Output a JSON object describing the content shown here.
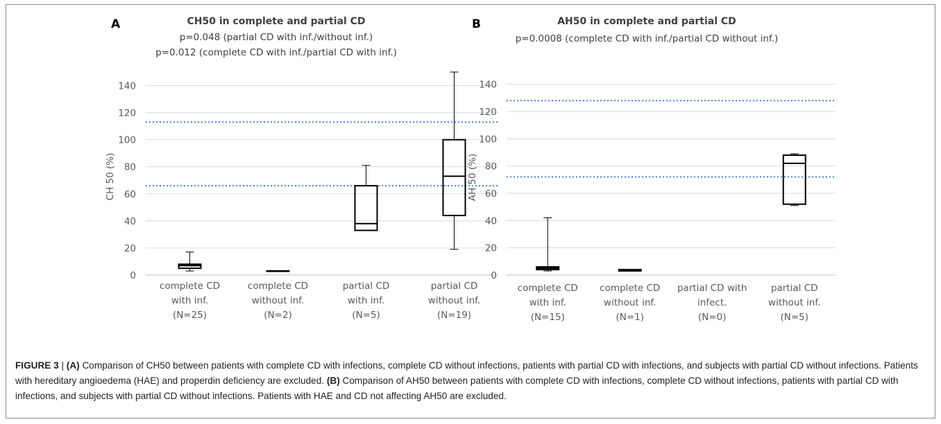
{
  "chart_data": [
    {
      "type": "box",
      "panel_label": "A",
      "title": "CH50 in complete and partial CD",
      "subtitle_lines": [
        "p=0.048 (partial CD with inf./without inf.)",
        "p=0.012 (complete CD with inf./partial CD with inf.)"
      ],
      "ylabel": "CH 50 (%)",
      "xlabel": "",
      "ylim": [
        0,
        150
      ],
      "yticks": [
        0,
        20,
        40,
        60,
        80,
        100,
        120,
        140
      ],
      "grid": true,
      "categories": [
        [
          "complete CD",
          "with inf.",
          "(N=25)"
        ],
        [
          "complete CD",
          "without inf.",
          "(N=2)"
        ],
        [
          "partial CD",
          "with inf.",
          "(N=5)"
        ],
        [
          "partial CD",
          "without inf.",
          "(N=19)"
        ]
      ],
      "boxes": [
        {
          "min": 3,
          "q1": 5,
          "median": 7,
          "q3": 8,
          "max": 17
        },
        {
          "min": 3,
          "q1": 3,
          "median": 3,
          "q3": 3,
          "max": 3
        },
        {
          "min": 33,
          "q1": 33,
          "median": 38,
          "q3": 66,
          "max": 81
        },
        {
          "min": 19,
          "q1": 44,
          "median": 73,
          "q3": 100,
          "max": 150
        }
      ],
      "reference_lines": [
        66,
        113
      ]
    },
    {
      "type": "box",
      "panel_label": "B",
      "title": "AH50 in complete and partial CD",
      "subtitle_lines": [
        "p=0.0008 (complete CD with inf./partial CD without inf.)"
      ],
      "ylabel": "AH 50 (%)",
      "xlabel": "",
      "ylim": [
        0,
        150
      ],
      "yticks": [
        0,
        20,
        40,
        60,
        80,
        100,
        120,
        140
      ],
      "grid": true,
      "categories": [
        [
          "complete CD",
          "with inf.",
          "(N=15)"
        ],
        [
          "complete CD",
          "without inf.",
          "(N=1)"
        ],
        [
          "partial CD with",
          "infect.",
          "(N=0)"
        ],
        [
          "partial CD",
          "without inf.",
          "(N=5)"
        ]
      ],
      "boxes": [
        {
          "min": 3,
          "q1": 4,
          "median": 5,
          "q3": 6,
          "max": 42
        },
        {
          "min": 3,
          "q1": 3,
          "median": 3.5,
          "q3": 4,
          "max": 4
        },
        null,
        {
          "min": 51,
          "q1": 52,
          "median": 82,
          "q3": 88,
          "max": 89
        }
      ],
      "reference_lines": [
        72,
        128
      ]
    }
  ],
  "colors": {
    "box_stroke": "#000000",
    "grid": "#d9d9d9",
    "axis": "#bfbfbf",
    "reference_line": "#4a7fd4",
    "tick_text": "#595959",
    "title_text": "#404040"
  },
  "caption": {
    "label": "FIGURE 3",
    "separator": " | ",
    "part_a_label": "(A)",
    "part_a_text": " Comparison of CH50 between patients with complete CD with infections, complete CD without infections, patients with partial CD with infections, and subjects with partial CD without infections. Patients with hereditary angioedema (HAE) and properdin deficiency are excluded. ",
    "part_b_label": "(B)",
    "part_b_text": " Comparison of AH50 between patients with complete CD with infections, complete CD without infections, patients with partial CD with infections, and subjects with partial CD without infections. Patients with HAE and CD not affecting AH50 are excluded."
  }
}
